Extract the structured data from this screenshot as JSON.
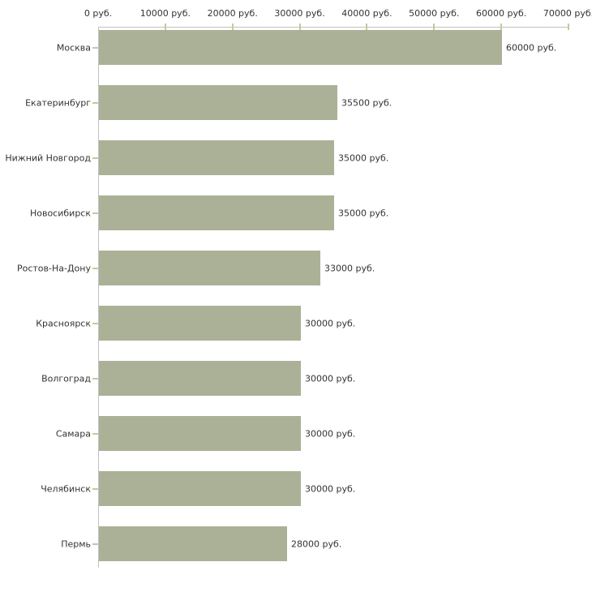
{
  "chart_data": {
    "type": "bar",
    "orientation": "horizontal",
    "title": "",
    "xlabel": "",
    "ylabel": "",
    "grid": false,
    "legend": false,
    "xlim": [
      0,
      70000
    ],
    "x_ticks": [
      0,
      10000,
      20000,
      30000,
      40000,
      50000,
      60000,
      70000
    ],
    "x_tick_labels": [
      "0 руб.",
      "10000 руб.",
      "20000 руб.",
      "30000 руб.",
      "40000 руб.",
      "50000 руб.",
      "60000 руб.",
      "70000 руб."
    ],
    "categories": [
      "Москва",
      "Екатеринбург",
      "Нижний Новгород",
      "Новосибирск",
      "Ростов-На-Дону",
      "Красноярск",
      "Волгоград",
      "Самара",
      "Челябинск",
      "Пермь"
    ],
    "values": [
      60000,
      35500,
      35000,
      35000,
      33000,
      30000,
      30000,
      30000,
      30000,
      28000
    ],
    "value_labels": [
      "60000 руб.",
      "35500 руб.",
      "35000 руб.",
      "35000 руб.",
      "33000 руб.",
      "30000 руб.",
      "30000 руб.",
      "30000 руб.",
      "30000 руб.",
      "28000 руб."
    ],
    "colors": {
      "bar": "#abb196",
      "axis": "#c0c0c0",
      "tick": "#c6c89e",
      "text": "#333333"
    }
  }
}
